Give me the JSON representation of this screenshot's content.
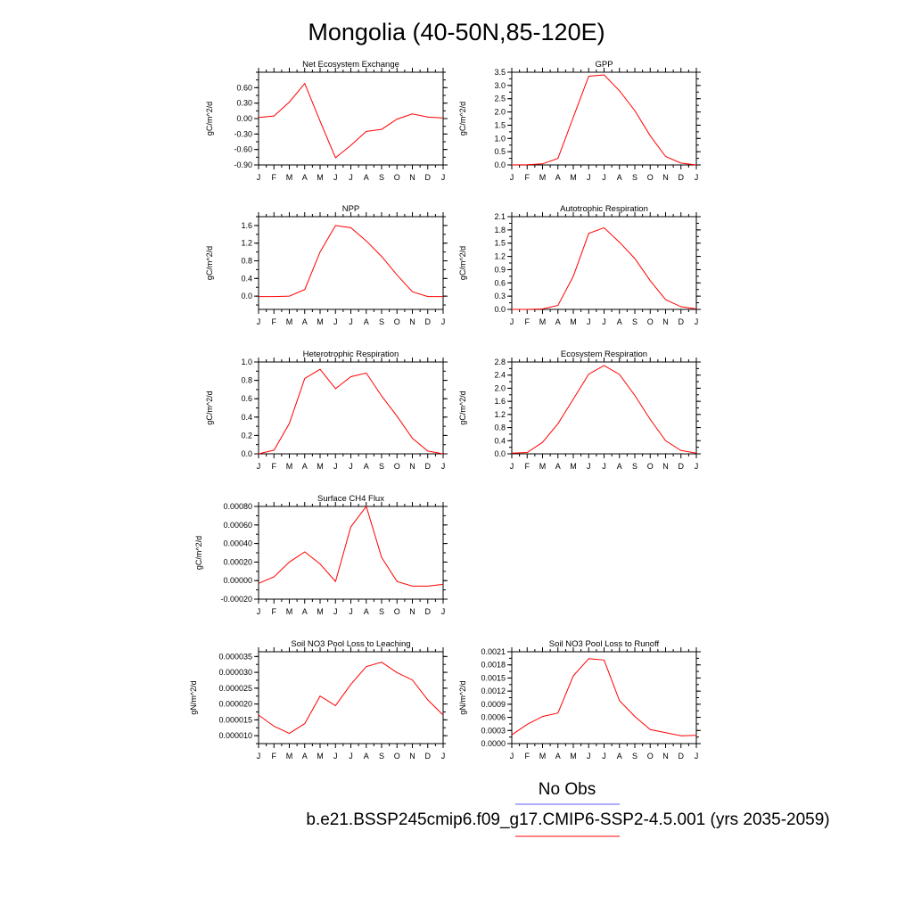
{
  "title": "Mongolia (40-50N,85-120E)",
  "legend": {
    "obs_label": "No Obs",
    "obs_color": "#5b5bff",
    "model_color": "#ff0000",
    "caption": "b.e21.BSSP245cmip6.f09_g17.CMIP6-SSP2-4.5.001 (yrs 2035-2059)"
  },
  "months": [
    "J",
    "F",
    "M",
    "A",
    "M",
    "J",
    "J",
    "A",
    "S",
    "O",
    "N",
    "D",
    "J"
  ],
  "chart_data": [
    {
      "type": "line",
      "title": "Net Ecosystem Exchange",
      "ylabel": "gC/m^2/d",
      "ylim": [
        -0.9,
        0.9
      ],
      "yticks": [
        "0.60",
        "0.30",
        "0.00",
        "-0.30",
        "-0.60",
        "-0.90"
      ],
      "ytick_values": [
        0.6,
        0.3,
        0.0,
        -0.3,
        -0.6,
        -0.9
      ],
      "values": [
        0.02,
        0.05,
        0.32,
        0.68,
        -0.05,
        -0.76,
        -0.52,
        -0.25,
        -0.21,
        -0.01,
        0.09,
        0.03,
        0.01
      ],
      "color": "#ff0000"
    },
    {
      "type": "line",
      "title": "GPP",
      "ylabel": "gC/m^2/d",
      "ylim": [
        0.0,
        3.5
      ],
      "yticks": [
        "3.5",
        "3.0",
        "2.5",
        "2.0",
        "1.5",
        "1.0",
        "0.5",
        "0.0"
      ],
      "ytick_values": [
        3.5,
        3.0,
        2.5,
        2.0,
        1.5,
        1.0,
        0.5,
        0.0
      ],
      "values": [
        0.0,
        0.01,
        0.04,
        0.25,
        1.8,
        3.35,
        3.4,
        2.8,
        2.05,
        1.1,
        0.32,
        0.07,
        0.0
      ],
      "color": "#ff0000"
    },
    {
      "type": "line",
      "title": "NPP",
      "ylabel": "gC/m^2/d",
      "ylim": [
        -0.3,
        1.8
      ],
      "yticks": [
        "1.6",
        "1.2",
        "0.8",
        "0.4",
        "0.0"
      ],
      "ytick_values": [
        1.6,
        1.2,
        0.8,
        0.4,
        0.0
      ],
      "values": [
        -0.01,
        -0.01,
        0.0,
        0.15,
        1.0,
        1.6,
        1.55,
        1.25,
        0.9,
        0.48,
        0.1,
        -0.01,
        -0.01
      ],
      "color": "#ff0000"
    },
    {
      "type": "line",
      "title": "Autotrophic Respiration",
      "ylabel": "gC/m^2/d",
      "ylim": [
        0.0,
        2.1
      ],
      "yticks": [
        "2.1",
        "1.8",
        "1.5",
        "1.2",
        "0.9",
        "0.6",
        "0.3",
        "0.0"
      ],
      "ytick_values": [
        2.1,
        1.8,
        1.5,
        1.2,
        0.9,
        0.6,
        0.3,
        0.0
      ],
      "values": [
        0.0,
        0.0,
        0.01,
        0.09,
        0.75,
        1.72,
        1.85,
        1.52,
        1.15,
        0.65,
        0.22,
        0.06,
        0.01
      ],
      "color": "#ff0000"
    },
    {
      "type": "line",
      "title": "Heterotrophic Respiration",
      "ylabel": "gC/m^2/d",
      "ylim": [
        0.0,
        1.0
      ],
      "yticks": [
        "1.0",
        "0.8",
        "0.6",
        "0.4",
        "0.2",
        "0.0"
      ],
      "ytick_values": [
        1.0,
        0.8,
        0.6,
        0.4,
        0.2,
        0.0
      ],
      "values": [
        0.0,
        0.04,
        0.33,
        0.82,
        0.92,
        0.71,
        0.84,
        0.88,
        0.63,
        0.41,
        0.17,
        0.03,
        0.0
      ],
      "color": "#ff0000"
    },
    {
      "type": "line",
      "title": "Ecosystem Respiration",
      "ylabel": "gC/m^2/d",
      "ylim": [
        0.0,
        2.8
      ],
      "yticks": [
        "2.8",
        "2.4",
        "2.0",
        "1.6",
        "1.2",
        "0.8",
        "0.4",
        "0.0"
      ],
      "ytick_values": [
        2.8,
        2.4,
        2.0,
        1.6,
        1.2,
        0.8,
        0.4,
        0.0
      ],
      "values": [
        0.02,
        0.04,
        0.35,
        0.92,
        1.67,
        2.43,
        2.69,
        2.42,
        1.78,
        1.05,
        0.4,
        0.1,
        0.02
      ],
      "color": "#ff0000"
    },
    {
      "type": "line",
      "title": "Surface CH4 Flux",
      "ylabel": "gC/m^2/d",
      "ylim": [
        -0.0002,
        0.0008
      ],
      "yticks": [
        "0.00080",
        "0.00060",
        "0.00040",
        "0.00020",
        "0.00000",
        "-0.00020"
      ],
      "ytick_values": [
        0.0008,
        0.0006,
        0.0004,
        0.0002,
        0.0,
        -0.0002
      ],
      "values": [
        -3e-05,
        4e-05,
        0.0002,
        0.00031,
        0.00018,
        -1e-05,
        0.00058,
        0.0008,
        0.00025,
        -1e-05,
        -6e-05,
        -6e-05,
        -4e-05
      ],
      "color": "#ff0000"
    },
    {
      "type": "line",
      "title": "Soil NO3 Pool Loss to Leaching",
      "ylabel": "gN/m^2/d",
      "ylim": [
        7.5e-06,
        3.65e-05
      ],
      "yticks": [
        "0.000035",
        "0.000030",
        "0.000025",
        "0.000020",
        "0.000015",
        "0.000010"
      ],
      "ytick_values": [
        3.5e-05,
        3e-05,
        2.5e-05,
        2e-05,
        1.5e-05,
        1e-05
      ],
      "values": [
        1.65e-05,
        1.3e-05,
        1.07e-05,
        1.38e-05,
        2.25e-05,
        1.95e-05,
        2.62e-05,
        3.18e-05,
        3.32e-05,
        2.99e-05,
        2.76e-05,
        2.13e-05,
        1.65e-05
      ],
      "color": "#ff0000"
    },
    {
      "type": "line",
      "title": "Soil NO3 Pool Loss to Runoff",
      "ylabel": "gN/m^2/d",
      "ylim": [
        0.0,
        0.0021
      ],
      "yticks": [
        "0.0021",
        "0.0018",
        "0.0015",
        "0.0012",
        "0.0009",
        "0.0006",
        "0.0003",
        "0.0000"
      ],
      "ytick_values": [
        0.0021,
        0.0018,
        0.0015,
        0.0012,
        0.0009,
        0.0006,
        0.0003,
        0.0
      ],
      "values": [
        0.0002,
        0.00044,
        0.00062,
        0.0007,
        0.00155,
        0.00194,
        0.00191,
        0.00098,
        0.00062,
        0.00032,
        0.00025,
        0.00018,
        0.00019
      ],
      "color": "#ff0000"
    }
  ]
}
